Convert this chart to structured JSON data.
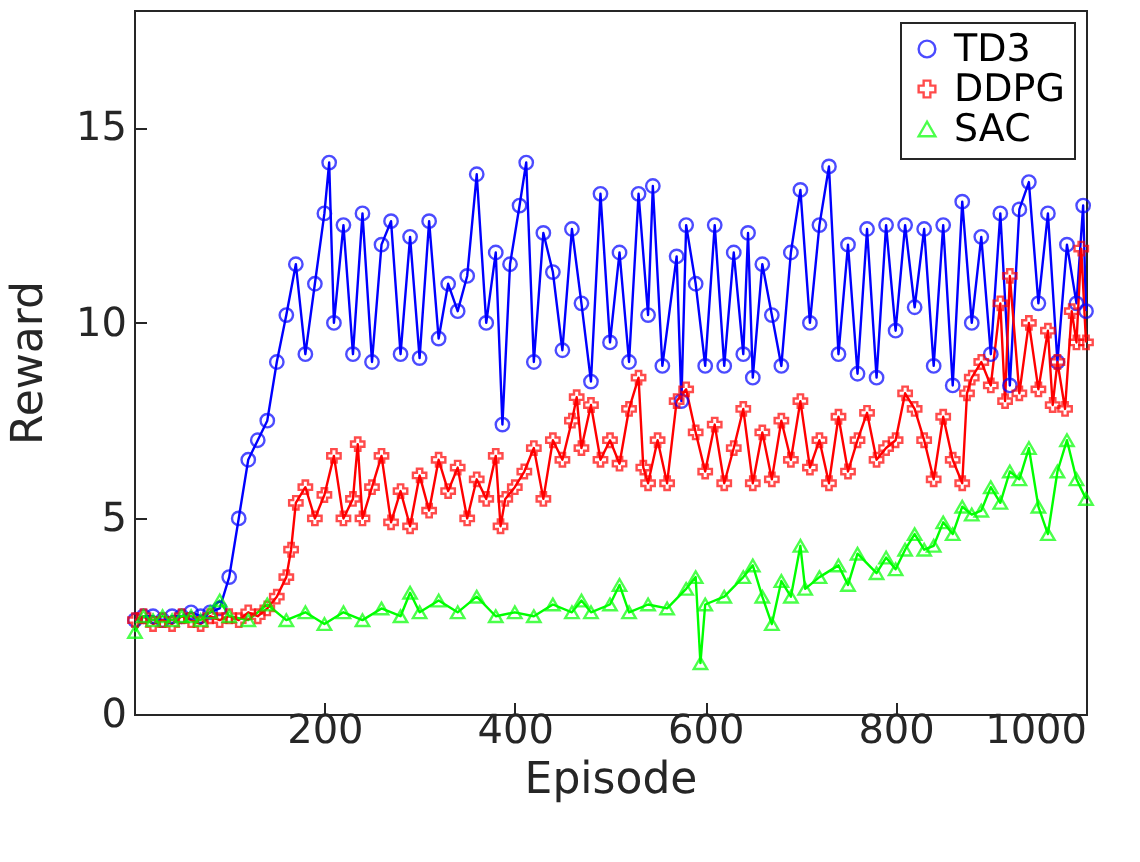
{
  "chart_data": {
    "type": "line",
    "xlabel": "Episode",
    "ylabel": "Reward",
    "xlim": [
      0,
      1000
    ],
    "ylim": [
      0,
      18
    ],
    "xticks": [
      200,
      400,
      600,
      800,
      1000
    ],
    "yticks": [
      0,
      5,
      10,
      15
    ],
    "legend": "top right",
    "line_style": "solid",
    "series": [
      {
        "name": "TD3",
        "color": "#0000ff",
        "marker": "circle",
        "x": [
          1,
          10,
          20,
          30,
          40,
          50,
          60,
          70,
          80,
          90,
          100,
          110,
          120,
          130,
          140,
          150,
          160,
          170,
          180,
          190,
          200,
          205,
          210,
          220,
          230,
          240,
          250,
          260,
          270,
          280,
          290,
          300,
          310,
          320,
          330,
          340,
          350,
          360,
          370,
          380,
          387,
          395,
          405,
          412,
          420,
          430,
          440,
          450,
          460,
          470,
          480,
          490,
          500,
          510,
          520,
          530,
          540,
          545,
          555,
          570,
          575,
          580,
          590,
          600,
          610,
          620,
          630,
          640,
          645,
          650,
          660,
          670,
          680,
          690,
          700,
          710,
          720,
          730,
          740,
          750,
          760,
          770,
          780,
          790,
          800,
          810,
          820,
          830,
          840,
          850,
          860,
          870,
          880,
          890,
          900,
          910,
          920,
          930,
          940,
          950,
          960,
          970,
          980,
          990,
          997,
          1000
        ],
        "values": [
          2.4,
          2.5,
          2.5,
          2.4,
          2.5,
          2.5,
          2.6,
          2.5,
          2.6,
          2.7,
          3.5,
          5.0,
          6.5,
          7.0,
          7.5,
          9.0,
          10.2,
          11.5,
          9.2,
          11.0,
          12.8,
          14.1,
          10.0,
          12.5,
          9.2,
          12.8,
          9.0,
          12.0,
          12.6,
          9.2,
          12.2,
          9.1,
          12.6,
          9.6,
          11.0,
          10.3,
          11.2,
          13.8,
          10.0,
          11.8,
          7.4,
          11.5,
          13.0,
          14.1,
          9.0,
          12.3,
          11.3,
          9.3,
          12.4,
          10.5,
          8.5,
          13.3,
          9.5,
          11.8,
          9.0,
          13.3,
          10.2,
          13.5,
          8.9,
          11.7,
          8.0,
          12.5,
          11.0,
          8.9,
          12.5,
          8.9,
          11.8,
          9.2,
          12.3,
          8.6,
          11.5,
          10.2,
          8.9,
          11.8,
          13.4,
          10.0,
          12.5,
          14.0,
          9.2,
          12.0,
          8.7,
          12.4,
          8.6,
          12.5,
          9.8,
          12.5,
          10.4,
          12.4,
          8.9,
          12.5,
          8.4,
          13.1,
          10.0,
          12.2,
          9.2,
          12.8,
          8.4,
          12.9,
          13.6,
          10.5,
          12.8,
          9.0,
          12.0,
          10.5,
          13.0,
          10.3
        ]
      },
      {
        "name": "DDPG",
        "color": "#ff0000",
        "marker": "cross",
        "x": [
          1,
          10,
          20,
          30,
          40,
          50,
          60,
          70,
          80,
          90,
          100,
          110,
          120,
          130,
          140,
          150,
          160,
          165,
          170,
          180,
          190,
          200,
          210,
          220,
          230,
          235,
          240,
          250,
          260,
          270,
          280,
          290,
          300,
          310,
          320,
          330,
          340,
          350,
          360,
          370,
          380,
          385,
          390,
          400,
          410,
          420,
          430,
          440,
          450,
          460,
          465,
          470,
          480,
          490,
          500,
          510,
          520,
          530,
          535,
          540,
          550,
          560,
          570,
          580,
          590,
          600,
          610,
          620,
          630,
          640,
          650,
          660,
          670,
          680,
          690,
          700,
          710,
          720,
          730,
          740,
          750,
          760,
          770,
          780,
          790,
          800,
          810,
          820,
          830,
          840,
          850,
          860,
          870,
          875,
          880,
          890,
          900,
          910,
          915,
          920,
          930,
          940,
          950,
          960,
          965,
          970,
          978,
          985,
          990,
          995,
          1000
        ],
        "values": [
          2.4,
          2.5,
          2.3,
          2.4,
          2.3,
          2.5,
          2.4,
          2.3,
          2.5,
          2.4,
          2.5,
          2.4,
          2.6,
          2.5,
          2.7,
          3.0,
          3.5,
          4.2,
          5.4,
          5.8,
          5.0,
          5.6,
          6.6,
          5.0,
          5.5,
          6.9,
          5.0,
          5.8,
          6.6,
          4.9,
          5.7,
          4.8,
          6.1,
          5.2,
          6.5,
          5.7,
          6.3,
          5.0,
          6.0,
          5.5,
          6.6,
          4.8,
          5.5,
          5.8,
          6.2,
          6.8,
          5.5,
          7.0,
          6.5,
          7.5,
          8.1,
          6.8,
          7.9,
          6.5,
          7.0,
          6.4,
          7.8,
          8.6,
          6.3,
          5.9,
          7.0,
          5.9,
          8.0,
          8.3,
          7.2,
          6.2,
          7.4,
          5.9,
          6.8,
          7.8,
          5.9,
          7.2,
          6.0,
          7.5,
          6.5,
          8.0,
          6.3,
          7.0,
          5.9,
          7.6,
          6.2,
          7.0,
          7.7,
          6.5,
          6.8,
          7.0,
          8.2,
          7.8,
          7.0,
          6.0,
          7.6,
          6.5,
          5.9,
          8.2,
          8.6,
          9.0,
          8.4,
          10.5,
          8.0,
          11.2,
          8.2,
          10.0,
          8.3,
          9.8,
          7.9,
          9.0,
          7.8,
          10.3,
          9.5,
          11.9,
          9.5
        ]
      },
      {
        "name": "SAC",
        "color": "#00ff00",
        "marker": "triangle",
        "x": [
          1,
          10,
          20,
          30,
          40,
          50,
          60,
          70,
          80,
          90,
          100,
          120,
          140,
          160,
          180,
          200,
          220,
          240,
          260,
          280,
          290,
          300,
          320,
          340,
          360,
          380,
          400,
          420,
          440,
          460,
          470,
          480,
          500,
          510,
          520,
          540,
          560,
          580,
          590,
          595,
          600,
          620,
          640,
          650,
          660,
          670,
          680,
          690,
          700,
          705,
          720,
          740,
          750,
          760,
          780,
          790,
          800,
          810,
          820,
          830,
          840,
          850,
          860,
          870,
          880,
          890,
          900,
          910,
          920,
          930,
          940,
          950,
          960,
          970,
          980,
          990,
          1000
        ],
        "values": [
          2.1,
          2.5,
          2.4,
          2.5,
          2.4,
          2.5,
          2.5,
          2.4,
          2.6,
          2.9,
          2.5,
          2.4,
          2.8,
          2.4,
          2.6,
          2.3,
          2.6,
          2.4,
          2.7,
          2.5,
          3.1,
          2.6,
          2.9,
          2.6,
          3.0,
          2.5,
          2.6,
          2.5,
          2.8,
          2.6,
          2.9,
          2.6,
          2.8,
          3.3,
          2.6,
          2.8,
          2.7,
          3.2,
          3.5,
          1.3,
          2.8,
          3.0,
          3.5,
          3.8,
          3.0,
          2.3,
          3.4,
          3.0,
          4.3,
          3.2,
          3.5,
          3.8,
          3.3,
          4.1,
          3.6,
          4.0,
          3.7,
          4.2,
          4.6,
          4.2,
          4.3,
          4.9,
          4.6,
          5.3,
          5.1,
          5.2,
          5.8,
          5.4,
          6.2,
          6.0,
          6.8,
          5.3,
          4.6,
          6.2,
          7.0,
          6.0,
          5.5
        ]
      }
    ]
  }
}
